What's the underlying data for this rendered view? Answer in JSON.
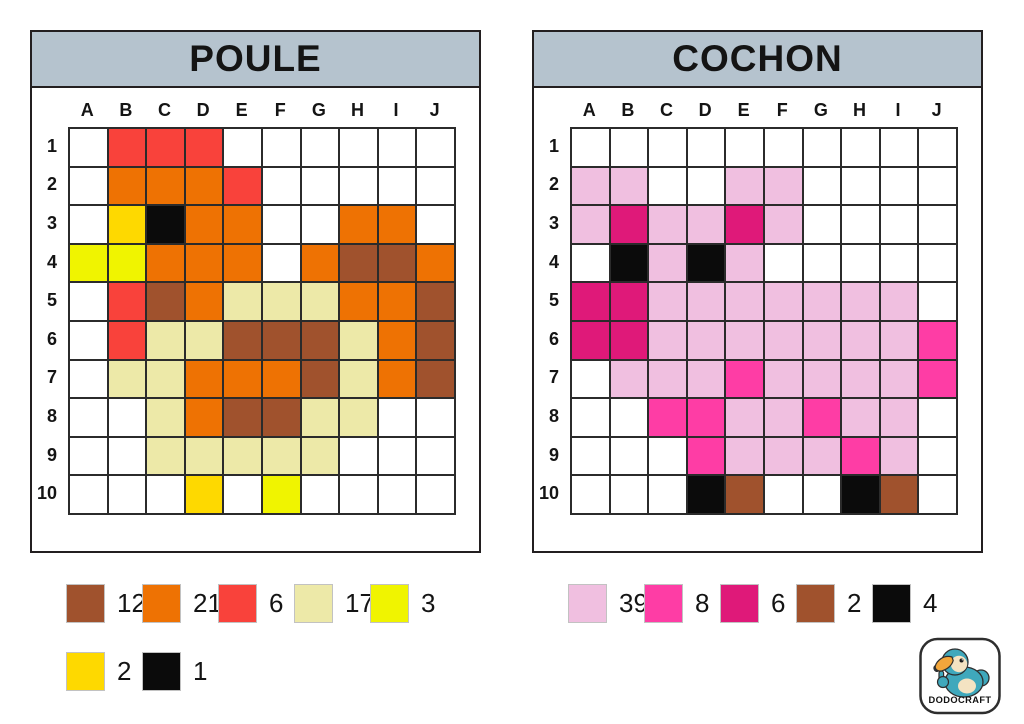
{
  "colors": {
    "white": "#ffffff",
    "red": "#f9423b",
    "orange": "#ee7203",
    "black": "#0b0b0b",
    "gold": "#fed900",
    "neon_yellow": "#f0f400",
    "cream": "#ede9a8",
    "brown": "#a0522d",
    "light_pink": "#f0bfe0",
    "bright_pink": "#fe3da5",
    "dark_pink": "#df1979",
    "header_bg": "#b5c3ce",
    "border": "#231f20"
  },
  "cell_color_keys": {
    ".": "white",
    "R": "red",
    "O": "orange",
    "K": "black",
    "G": "gold",
    "Y": "neon_yellow",
    "C": "cream",
    "B": "brown",
    "P": "light_pink",
    "M": "bright_pink",
    "D": "dark_pink"
  },
  "panels": [
    {
      "title": "POULE",
      "column_labels": [
        "A",
        "B",
        "C",
        "D",
        "E",
        "F",
        "G",
        "H",
        "I",
        "J"
      ],
      "row_labels": [
        "1",
        "2",
        "3",
        "4",
        "5",
        "6",
        "7",
        "8",
        "9",
        "10"
      ],
      "grid": [
        ".RRR......",
        ".OOOR.....",
        ".GKOO..OO.",
        "YYOOO.OBBO",
        ".RBOCCCOOB",
        ".RCCBBBCOB",
        ".CCOOOBCOB",
        "..COBBCC..",
        "..CCCCC...",
        "...G.Y...."
      ],
      "legend_rows": [
        [
          {
            "color": "brown",
            "count": 12
          },
          {
            "color": "orange",
            "count": 21
          },
          {
            "color": "red",
            "count": 6
          },
          {
            "color": "cream",
            "count": 17
          },
          {
            "color": "neon_yellow",
            "count": 3
          }
        ],
        [
          {
            "color": "gold",
            "count": 2
          },
          {
            "color": "black",
            "count": 1
          }
        ]
      ]
    },
    {
      "title": "COCHON",
      "column_labels": [
        "A",
        "B",
        "C",
        "D",
        "E",
        "F",
        "G",
        "H",
        "I",
        "J"
      ],
      "row_labels": [
        "1",
        "2",
        "3",
        "4",
        "5",
        "6",
        "7",
        "8",
        "9",
        "10"
      ],
      "grid": [
        "..........",
        "PP..PP....",
        "PDPPDP....",
        ".KPKP.....",
        "DDPPPPPPP.",
        "DDPPPPPPPM",
        ".PPPMPPPPM",
        "..MMPPMPP.",
        "...MPPPMP.",
        "...KB..KB."
      ],
      "legend_rows": [
        [
          {
            "color": "light_pink",
            "count": 39
          },
          {
            "color": "bright_pink",
            "count": 8
          },
          {
            "color": "dark_pink",
            "count": 6
          },
          {
            "color": "brown",
            "count": 2
          },
          {
            "color": "black",
            "count": 4
          }
        ]
      ]
    }
  ],
  "logo": {
    "text": "DODOCRAFT"
  }
}
